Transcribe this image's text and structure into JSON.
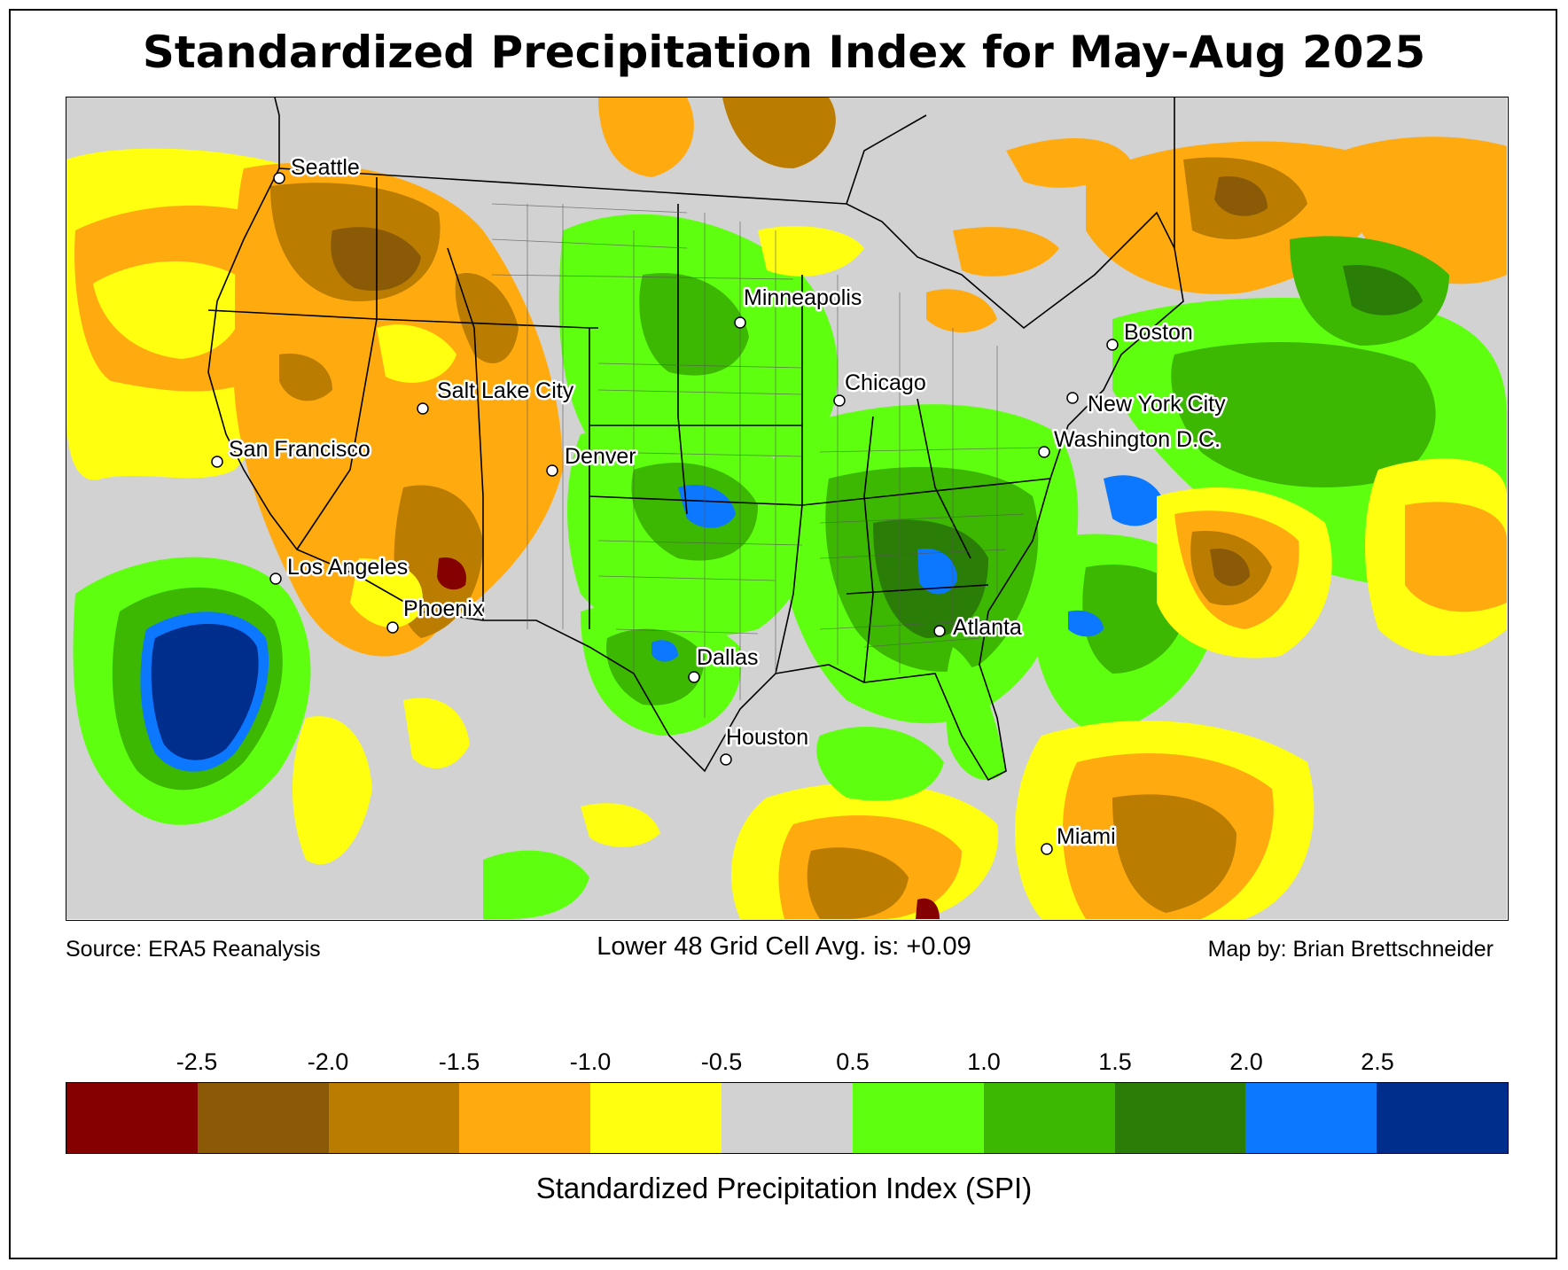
{
  "title": "Standardized Precipitation Index for May-Aug 2025",
  "footer": {
    "source": "Source: ERA5 Reanalysis",
    "average": "Lower 48 Grid Cell Avg. is: +0.09",
    "credit": "Map by: Brian Brettschneider"
  },
  "colorbar": {
    "title": "Standardized Precipitation Index (SPI)",
    "ticks": [
      "-2.5",
      "-2.0",
      "-1.5",
      "-1.0",
      "-0.5",
      "0.5",
      "1.0",
      "1.5",
      "2.0",
      "2.5"
    ],
    "colors": [
      "#850000",
      "#8a5a06",
      "#bb7c02",
      "#ffab10",
      "#ffff10",
      "#d2d2d2",
      "#5fff10",
      "#3cb802",
      "#2a7d06",
      "#0c78ff",
      "#002e8c"
    ]
  },
  "cities": [
    "Seattle",
    "Minneapolis",
    "Boston",
    "Chicago",
    "New York City",
    "Salt Lake City",
    "Washington D.C.",
    "San Francisco",
    "Denver",
    "Los Angeles",
    "Phoenix",
    "Atlanta",
    "Dallas",
    "Houston",
    "Miami"
  ]
}
